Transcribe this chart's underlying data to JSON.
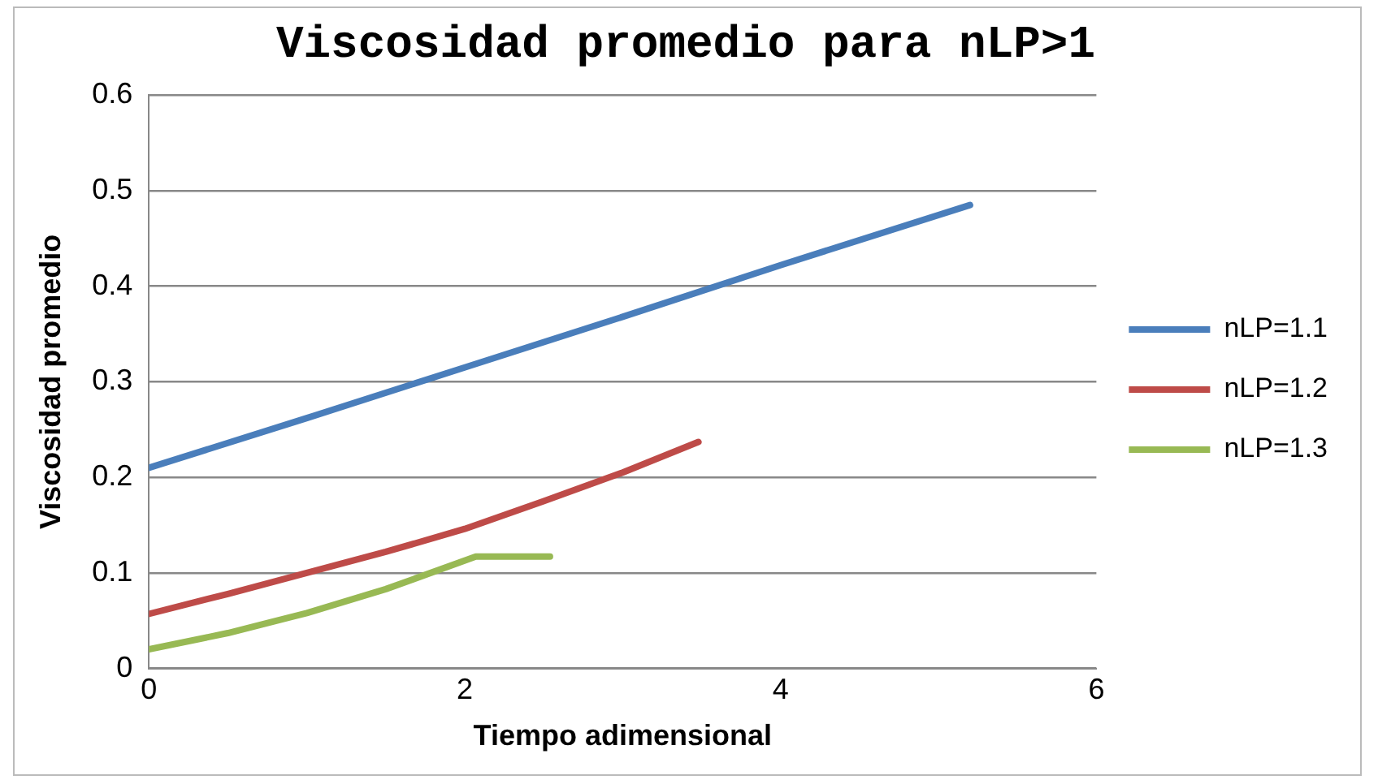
{
  "chart_data": {
    "type": "line",
    "title": "Viscosidad promedio para nLP>1",
    "xlabel": "Tiempo adimensional",
    "ylabel": "Viscosidad promedio",
    "xlim": [
      0,
      6
    ],
    "xticks": [
      0,
      2,
      4,
      6
    ],
    "ylim": [
      0,
      0.6
    ],
    "yticks": [
      0,
      0.1,
      0.2,
      0.3,
      0.4,
      0.5,
      0.6
    ],
    "grid": "y",
    "legend": "right",
    "marker": "none",
    "series": [
      {
        "name": "nLP=1.1",
        "color": "#4a7ebb",
        "x": [
          0,
          1,
          2,
          3,
          4,
          5.2
        ],
        "values": [
          0.21,
          0.262,
          0.315,
          0.368,
          0.422,
          0.485
        ]
      },
      {
        "name": "nLP=1.2",
        "color": "#be4b48",
        "x": [
          0,
          0.5,
          1,
          1.5,
          2,
          2.5,
          3,
          3.48
        ],
        "values": [
          0.057,
          0.078,
          0.1,
          0.122,
          0.146,
          0.175,
          0.205,
          0.237
        ]
      },
      {
        "name": "nLP=1.3",
        "color": "#98b954",
        "x": [
          0,
          0.5,
          1,
          1.5,
          2.07,
          2.54
        ],
        "values": [
          0.02,
          0.037,
          0.058,
          0.083,
          0.117,
          0.117
        ]
      }
    ]
  }
}
